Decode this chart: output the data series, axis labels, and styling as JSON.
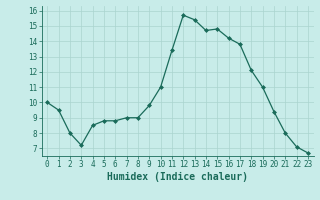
{
  "x": [
    0,
    1,
    2,
    3,
    4,
    5,
    6,
    7,
    8,
    9,
    10,
    11,
    12,
    13,
    14,
    15,
    16,
    17,
    18,
    19,
    20,
    21,
    22,
    23
  ],
  "y": [
    10.0,
    9.5,
    8.0,
    7.2,
    8.5,
    8.8,
    8.8,
    9.0,
    9.0,
    9.8,
    11.0,
    13.4,
    15.7,
    15.4,
    14.7,
    14.8,
    14.2,
    13.8,
    12.1,
    11.0,
    9.4,
    8.0,
    7.1,
    6.7
  ],
  "xlabel": "Humidex (Indice chaleur)",
  "bg_color": "#c8ece9",
  "line_color": "#1a6b5a",
  "marker_color": "#1a6b5a",
  "grid_color": "#aad4cf",
  "ylim": [
    6.5,
    16.3
  ],
  "xlim": [
    -0.5,
    23.5
  ],
  "yticks": [
    7,
    8,
    9,
    10,
    11,
    12,
    13,
    14,
    15,
    16
  ],
  "xticks": [
    0,
    1,
    2,
    3,
    4,
    5,
    6,
    7,
    8,
    9,
    10,
    11,
    12,
    13,
    14,
    15,
    16,
    17,
    18,
    19,
    20,
    21,
    22,
    23
  ],
  "tick_fontsize": 5.5,
  "xlabel_fontsize": 7.0
}
